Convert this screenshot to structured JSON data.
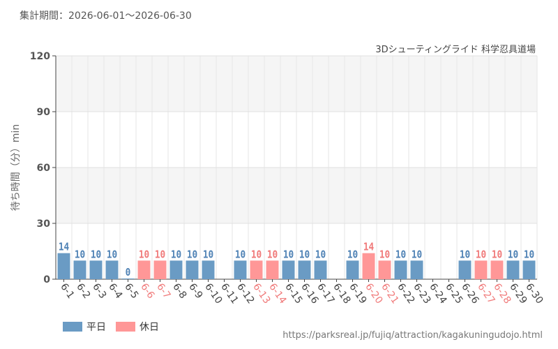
{
  "header": {
    "period": "集計期間：2026-06-01～2026-06-30",
    "attraction": "3Dシューティングライド 科学忍具道場"
  },
  "footer": {
    "url": "https://parksreal.jp/fujiq/attraction/kagakuningudojo.html"
  },
  "colors": {
    "weekday": "#6a9bc4",
    "holiday": "#ff9797",
    "weekday_label": "#4f82b5",
    "holiday_label": "#f07a7a"
  },
  "chart_data": {
    "type": "bar",
    "title": "",
    "xlabel": "",
    "ylabel": "待ち時間（分）min",
    "ylim": [
      0,
      120
    ],
    "yticks": [
      0,
      30,
      60,
      90,
      120
    ],
    "legend": [
      {
        "name": "平日",
        "key": "weekday"
      },
      {
        "name": "休日",
        "key": "holiday"
      }
    ],
    "legend_position": "bottom-left",
    "categories": [
      "6-1",
      "6-2",
      "6-3",
      "6-4",
      "6-5",
      "6-6",
      "6-7",
      "6-8",
      "6-9",
      "6-10",
      "6-11",
      "6-12",
      "6-13",
      "6-14",
      "6-15",
      "6-16",
      "6-17",
      "6-18",
      "6-19",
      "6-20",
      "6-21",
      "6-22",
      "6-23",
      "6-24",
      "6-25",
      "6-26",
      "6-27",
      "6-28",
      "6-29",
      "6-30"
    ],
    "values": [
      14,
      10,
      10,
      10,
      0,
      10,
      10,
      10,
      10,
      10,
      null,
      10,
      10,
      10,
      10,
      10,
      10,
      null,
      10,
      14,
      10,
      10,
      10,
      null,
      null,
      10,
      10,
      10,
      10,
      10
    ],
    "day_type": [
      "weekday",
      "weekday",
      "weekday",
      "weekday",
      "weekday",
      "holiday",
      "holiday",
      "weekday",
      "weekday",
      "weekday",
      "weekday",
      "weekday",
      "holiday",
      "holiday",
      "weekday",
      "weekday",
      "weekday",
      "weekday",
      "weekday",
      "holiday",
      "holiday",
      "weekday",
      "weekday",
      "weekday",
      "weekday",
      "weekday",
      "holiday",
      "holiday",
      "weekday",
      "weekday"
    ]
  }
}
